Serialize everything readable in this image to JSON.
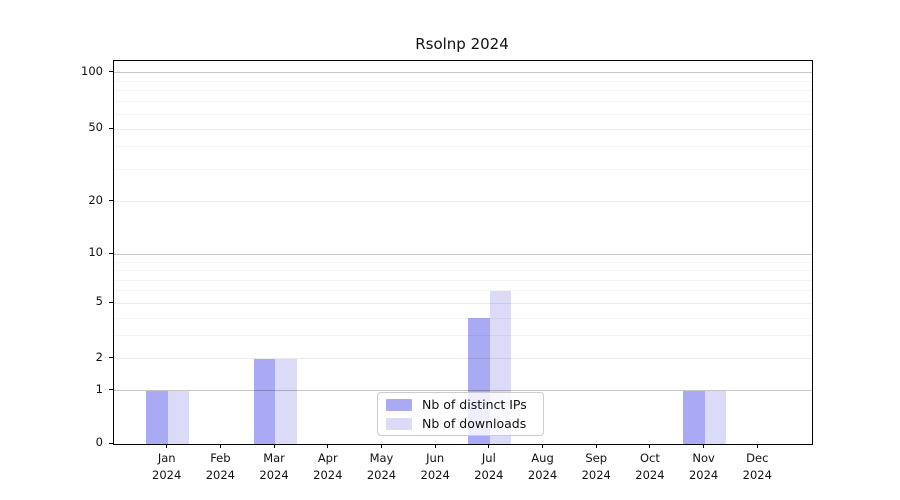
{
  "chart_data": {
    "type": "bar",
    "title": "Rsolnp 2024",
    "categories": [
      "Jan",
      "Feb",
      "Mar",
      "Apr",
      "May",
      "Jun",
      "Jul",
      "Aug",
      "Sep",
      "Oct",
      "Nov",
      "Dec"
    ],
    "x_year": "2024",
    "series": [
      {
        "name": "Nb of distinct IPs",
        "color": "#a9a9f4",
        "values": [
          1,
          0,
          2,
          0,
          0,
          0,
          4,
          0,
          0,
          0,
          1,
          0
        ]
      },
      {
        "name": "Nb of downloads",
        "color": "#dbdbf8",
        "values": [
          1,
          0,
          2,
          0,
          0,
          0,
          6,
          0,
          0,
          0,
          1,
          0
        ]
      }
    ],
    "y_axis": {
      "ticks": [
        0,
        1,
        2,
        5,
        10,
        20,
        50,
        100
      ],
      "major_gridlines": [
        1,
        10,
        100
      ],
      "labeled_gridlines": [
        2,
        5,
        20,
        50
      ],
      "minor_gridlines": [
        3,
        4,
        6,
        7,
        8,
        9,
        30,
        40,
        60,
        70,
        80,
        90
      ],
      "scale": "log1p",
      "ylim": [
        0,
        116
      ]
    },
    "xlabel": "",
    "ylabel": "",
    "grid": true,
    "legend_position": "bottom-center"
  }
}
